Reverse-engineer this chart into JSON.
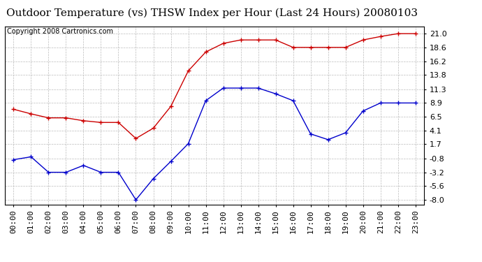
{
  "title": "Outdoor Temperature (vs) THSW Index per Hour (Last 24 Hours) 20080103",
  "copyright": "Copyright 2008 Cartronics.com",
  "hours": [
    0,
    1,
    2,
    3,
    4,
    5,
    6,
    7,
    8,
    9,
    10,
    11,
    12,
    13,
    14,
    15,
    16,
    17,
    18,
    19,
    20,
    21,
    22,
    23
  ],
  "hour_labels": [
    "00:00",
    "01:00",
    "02:00",
    "03:00",
    "04:00",
    "05:00",
    "06:00",
    "07:00",
    "08:00",
    "09:00",
    "10:00",
    "11:00",
    "12:00",
    "13:00",
    "14:00",
    "15:00",
    "16:00",
    "17:00",
    "18:00",
    "19:00",
    "20:00",
    "21:00",
    "22:00",
    "23:00"
  ],
  "red_data": [
    7.8,
    7.0,
    6.3,
    6.3,
    5.8,
    5.5,
    5.5,
    2.7,
    4.5,
    8.3,
    14.5,
    17.8,
    19.3,
    19.9,
    19.9,
    19.9,
    18.6,
    18.6,
    18.6,
    18.6,
    19.9,
    20.5,
    21.0,
    21.0
  ],
  "blue_data": [
    -1.0,
    -0.5,
    -3.2,
    -3.2,
    -2.0,
    -3.2,
    -3.2,
    -8.0,
    -4.3,
    -1.3,
    1.8,
    9.3,
    11.5,
    11.5,
    11.5,
    10.5,
    9.3,
    3.5,
    2.5,
    3.7,
    7.5,
    8.9,
    8.9,
    8.9
  ],
  "red_color": "#cc0000",
  "blue_color": "#0000cc",
  "yticks": [
    -8.0,
    -5.6,
    -3.2,
    -0.8,
    1.7,
    4.1,
    6.5,
    8.9,
    11.3,
    13.8,
    16.2,
    18.6,
    21.0
  ],
  "ylim": [
    -8.8,
    22.3
  ],
  "xlim": [
    -0.5,
    23.5
  ],
  "bg_color": "#ffffff",
  "grid_color": "#bbbbbb",
  "title_fontsize": 11,
  "copyright_fontsize": 7,
  "tick_fontsize": 8,
  "figwidth": 6.9,
  "figheight": 3.75,
  "dpi": 100
}
